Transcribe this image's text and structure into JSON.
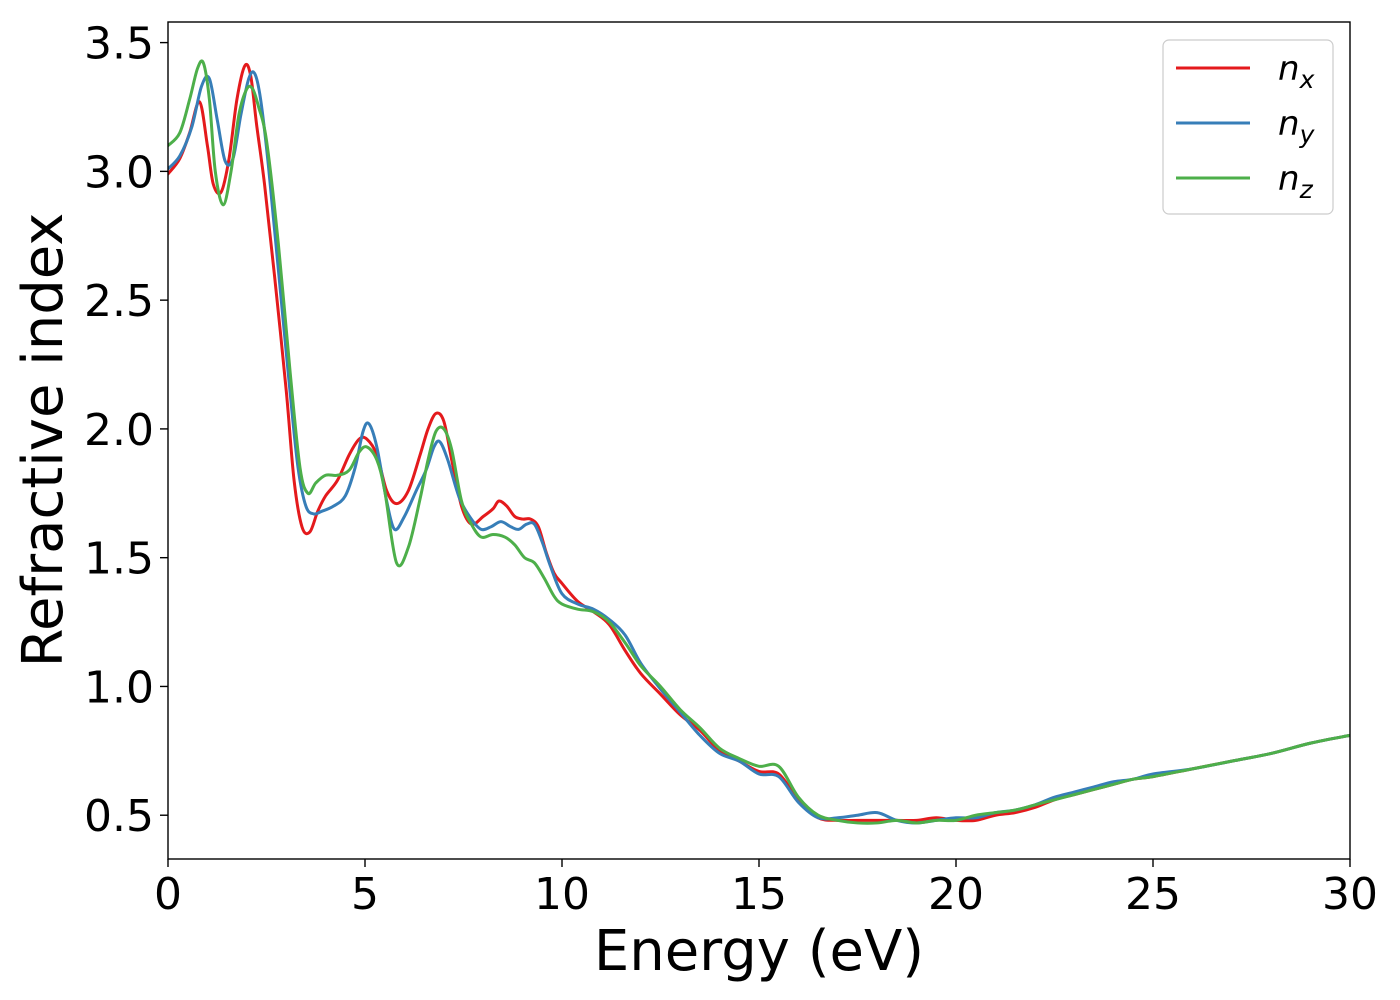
{
  "chart_data": {
    "type": "line",
    "title": "",
    "xlabel": "Energy (eV)",
    "ylabel": "Refractive index",
    "xlim": [
      0,
      30
    ],
    "ylim": [
      0.33,
      3.58
    ],
    "xticks": [
      0,
      5,
      10,
      15,
      20,
      25,
      30
    ],
    "yticks": [
      0.5,
      1.0,
      1.5,
      2.0,
      2.5,
      3.0,
      3.5
    ],
    "xtick_labels": [
      "0",
      "5",
      "10",
      "15",
      "20",
      "25",
      "30"
    ],
    "ytick_labels": [
      "0.5",
      "1.0",
      "1.5",
      "2.0",
      "2.5",
      "3.0",
      "3.5"
    ],
    "grid": false,
    "legend_position": "top-right",
    "series": [
      {
        "name": "n_x",
        "label_base": "n",
        "label_sub": "x",
        "color": "#e41a1c",
        "x": [
          0,
          0.3,
          0.55,
          0.8,
          1.0,
          1.15,
          1.35,
          1.55,
          1.75,
          1.95,
          2.1,
          2.25,
          2.45,
          2.7,
          3.0,
          3.2,
          3.4,
          3.6,
          3.8,
          4.0,
          4.3,
          4.6,
          4.85,
          5.05,
          5.3,
          5.55,
          5.8,
          6.1,
          6.4,
          6.6,
          6.8,
          7.0,
          7.2,
          7.45,
          7.7,
          8.0,
          8.25,
          8.4,
          8.6,
          8.8,
          9.0,
          9.2,
          9.4,
          9.6,
          9.8,
          10.0,
          10.4,
          10.8,
          11.2,
          11.6,
          12.0,
          12.5,
          13.0,
          13.5,
          14.0,
          14.5,
          15.0,
          15.5,
          16.0,
          16.5,
          17.0,
          17.5,
          18.0,
          18.5,
          19.0,
          19.5,
          20.0,
          20.5,
          21.0,
          21.5,
          22.0,
          22.5,
          23.0,
          23.5,
          24.0,
          24.5,
          25.0,
          26.0,
          27.0,
          28.0,
          29.0,
          30.0
        ],
        "y": [
          2.99,
          3.05,
          3.15,
          3.27,
          3.1,
          2.95,
          2.92,
          3.05,
          3.28,
          3.41,
          3.37,
          3.18,
          2.95,
          2.6,
          2.15,
          1.8,
          1.62,
          1.6,
          1.68,
          1.74,
          1.8,
          1.9,
          1.96,
          1.96,
          1.9,
          1.76,
          1.71,
          1.76,
          1.9,
          2.0,
          2.06,
          2.03,
          1.88,
          1.7,
          1.63,
          1.66,
          1.69,
          1.72,
          1.7,
          1.66,
          1.65,
          1.65,
          1.62,
          1.52,
          1.44,
          1.4,
          1.33,
          1.29,
          1.24,
          1.14,
          1.05,
          0.97,
          0.89,
          0.83,
          0.75,
          0.71,
          0.67,
          0.66,
          0.56,
          0.49,
          0.48,
          0.48,
          0.48,
          0.48,
          0.48,
          0.49,
          0.48,
          0.48,
          0.5,
          0.51,
          0.53,
          0.56,
          0.58,
          0.6,
          0.62,
          0.64,
          0.65,
          0.68,
          0.71,
          0.74,
          0.78,
          0.81
        ]
      },
      {
        "name": "n_y",
        "label_base": "n",
        "label_sub": "y",
        "color": "#377eb8",
        "x": [
          0,
          0.3,
          0.6,
          0.85,
          1.05,
          1.25,
          1.45,
          1.65,
          1.85,
          2.05,
          2.2,
          2.35,
          2.55,
          2.8,
          3.1,
          3.3,
          3.5,
          3.7,
          3.9,
          4.2,
          4.5,
          4.75,
          4.95,
          5.1,
          5.3,
          5.55,
          5.75,
          6.0,
          6.3,
          6.55,
          6.75,
          6.9,
          7.1,
          7.4,
          7.7,
          7.95,
          8.2,
          8.45,
          8.7,
          8.9,
          9.1,
          9.3,
          9.5,
          9.7,
          10.0,
          10.4,
          10.8,
          11.2,
          11.6,
          12.0,
          12.5,
          13.0,
          13.5,
          14.0,
          14.5,
          15.0,
          15.5,
          16.0,
          16.5,
          17.0,
          17.5,
          18.0,
          18.5,
          19.0,
          19.5,
          20.0,
          20.5,
          21.0,
          21.5,
          22.0,
          22.5,
          23.0,
          23.5,
          24.0,
          24.5,
          25.0,
          26.0,
          27.0,
          28.0,
          29.0,
          30.0
        ],
        "y": [
          3.01,
          3.06,
          3.17,
          3.33,
          3.36,
          3.2,
          3.04,
          3.05,
          3.22,
          3.36,
          3.38,
          3.28,
          3.02,
          2.62,
          2.14,
          1.85,
          1.7,
          1.67,
          1.68,
          1.7,
          1.74,
          1.85,
          1.99,
          2.02,
          1.93,
          1.72,
          1.61,
          1.66,
          1.76,
          1.84,
          1.93,
          1.95,
          1.88,
          1.73,
          1.65,
          1.61,
          1.62,
          1.64,
          1.62,
          1.61,
          1.63,
          1.63,
          1.56,
          1.47,
          1.36,
          1.32,
          1.3,
          1.26,
          1.2,
          1.09,
          0.99,
          0.9,
          0.81,
          0.74,
          0.71,
          0.66,
          0.65,
          0.55,
          0.49,
          0.49,
          0.5,
          0.51,
          0.48,
          0.47,
          0.48,
          0.49,
          0.49,
          0.51,
          0.52,
          0.54,
          0.57,
          0.59,
          0.61,
          0.63,
          0.64,
          0.66,
          0.68,
          0.71,
          0.74,
          0.78,
          0.81
        ]
      },
      {
        "name": "n_z",
        "label_base": "n",
        "label_sub": "z",
        "color": "#4daf4a",
        "x": [
          0,
          0.3,
          0.55,
          0.75,
          0.9,
          1.05,
          1.2,
          1.4,
          1.6,
          1.8,
          2.0,
          2.15,
          2.3,
          2.5,
          2.8,
          3.1,
          3.35,
          3.55,
          3.75,
          4.0,
          4.3,
          4.6,
          4.85,
          5.05,
          5.3,
          5.5,
          5.8,
          6.1,
          6.4,
          6.6,
          6.8,
          7.0,
          7.2,
          7.45,
          7.7,
          7.95,
          8.25,
          8.55,
          8.8,
          9.05,
          9.3,
          9.55,
          9.8,
          10.0,
          10.4,
          10.8,
          11.2,
          11.6,
          12.0,
          12.5,
          13.0,
          13.5,
          14.0,
          14.5,
          15.0,
          15.5,
          16.0,
          16.5,
          17.0,
          17.5,
          18.0,
          18.5,
          19.0,
          19.5,
          20.0,
          20.5,
          21.0,
          21.5,
          22.0,
          22.5,
          23.0,
          23.5,
          24.0,
          24.5,
          25.0,
          26.0,
          27.0,
          28.0,
          29.0,
          30.0
        ],
        "y": [
          3.1,
          3.15,
          3.28,
          3.4,
          3.42,
          3.28,
          3.0,
          2.87,
          3.0,
          3.22,
          3.32,
          3.32,
          3.25,
          3.12,
          2.72,
          2.22,
          1.85,
          1.75,
          1.79,
          1.82,
          1.82,
          1.84,
          1.91,
          1.93,
          1.88,
          1.76,
          1.48,
          1.54,
          1.73,
          1.88,
          1.99,
          2.0,
          1.92,
          1.72,
          1.63,
          1.58,
          1.59,
          1.58,
          1.55,
          1.5,
          1.48,
          1.42,
          1.35,
          1.32,
          1.3,
          1.29,
          1.25,
          1.17,
          1.08,
          1.0,
          0.91,
          0.84,
          0.76,
          0.72,
          0.69,
          0.69,
          0.57,
          0.5,
          0.48,
          0.47,
          0.47,
          0.48,
          0.47,
          0.48,
          0.48,
          0.5,
          0.51,
          0.52,
          0.54,
          0.56,
          0.58,
          0.6,
          0.62,
          0.64,
          0.65,
          0.68,
          0.71,
          0.74,
          0.78,
          0.81
        ]
      }
    ]
  }
}
